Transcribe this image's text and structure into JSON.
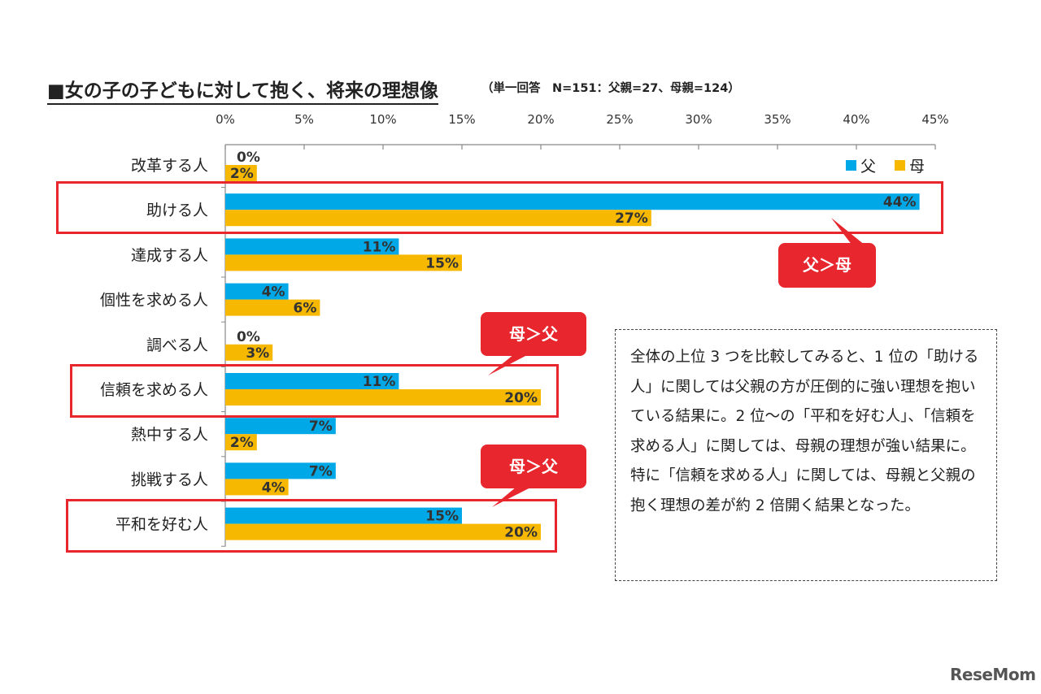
{
  "chart_data": {
    "type": "bar",
    "orientation": "horizontal",
    "title": "■女の子の子どもに対して抱く、将来の理想像",
    "subtitle": "（単一回答　N=151：父親=27、母親=124）",
    "categories": [
      "改革する人",
      "助ける人",
      "達成する人",
      "個性を求める人",
      "調べる人",
      "信頼を求める人",
      "熱中する人",
      "挑戦する人",
      "平和を好む人"
    ],
    "series": [
      {
        "name": "父",
        "color": "#00a8e8",
        "values": [
          0,
          44,
          11,
          4,
          0,
          11,
          7,
          7,
          15
        ],
        "labels": [
          "0%",
          "44%",
          "11%",
          "4%",
          "0%",
          "11%",
          "7%",
          "7%",
          "15%"
        ]
      },
      {
        "name": "母",
        "color": "#f6b800",
        "values": [
          2,
          27,
          15,
          6,
          3,
          20,
          2,
          4,
          20
        ],
        "labels": [
          "2%",
          "27%",
          "15%",
          "6%",
          "3%",
          "20%",
          "2%",
          "4%",
          "20%"
        ]
      }
    ],
    "xlim": [
      0,
      45
    ],
    "xticks": [
      "0%",
      "5%",
      "10%",
      "15%",
      "20%",
      "25%",
      "30%",
      "35%",
      "40%",
      "45%"
    ],
    "legend_position": "top-right"
  },
  "annotations": {
    "bubble_1": "父＞母",
    "bubble_2": "母＞父",
    "bubble_3": "母＞父",
    "note": "全体の上位 3 つを比較してみると、1 位の「助ける人」に関しては父親の方が圧倒的に強い理想を抱いている結果に。2 位～の「平和を好む人」、「信頼を求める人」に関しては、母親の理想が強い結果に。特に「信頼を求める人」に関しては、母親と父親の抱く理想の差が約 2 倍開く結果となった。"
  },
  "colors": {
    "father": "#00a8e8",
    "mother": "#f6b800",
    "highlight": "#e8262d"
  },
  "logo": "ReseMom"
}
